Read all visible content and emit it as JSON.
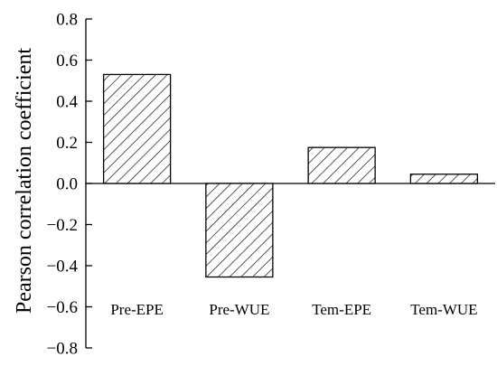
{
  "chart_data": {
    "type": "bar",
    "categories": [
      "Pre-EPE",
      "Pre-WUE",
      "Tem-EPE",
      "Tem-WUE"
    ],
    "values": [
      0.53,
      -0.455,
      0.175,
      0.045
    ],
    "title": "",
    "xlabel": "",
    "ylabel": "Pearson correlation coefficient",
    "ylim": [
      -0.8,
      0.8
    ],
    "yticks": [
      "0.8",
      "0.6",
      "0.4",
      "0.2",
      "0.0",
      "−0.2",
      "−0.4",
      "−0.6",
      "−0.8"
    ],
    "ytick_values": [
      0.8,
      0.6,
      0.4,
      0.2,
      0.0,
      -0.2,
      -0.4,
      -0.6,
      -0.8
    ],
    "bar_pattern": "diagonal-hatch",
    "bar_color": "#000000",
    "grid": false
  }
}
